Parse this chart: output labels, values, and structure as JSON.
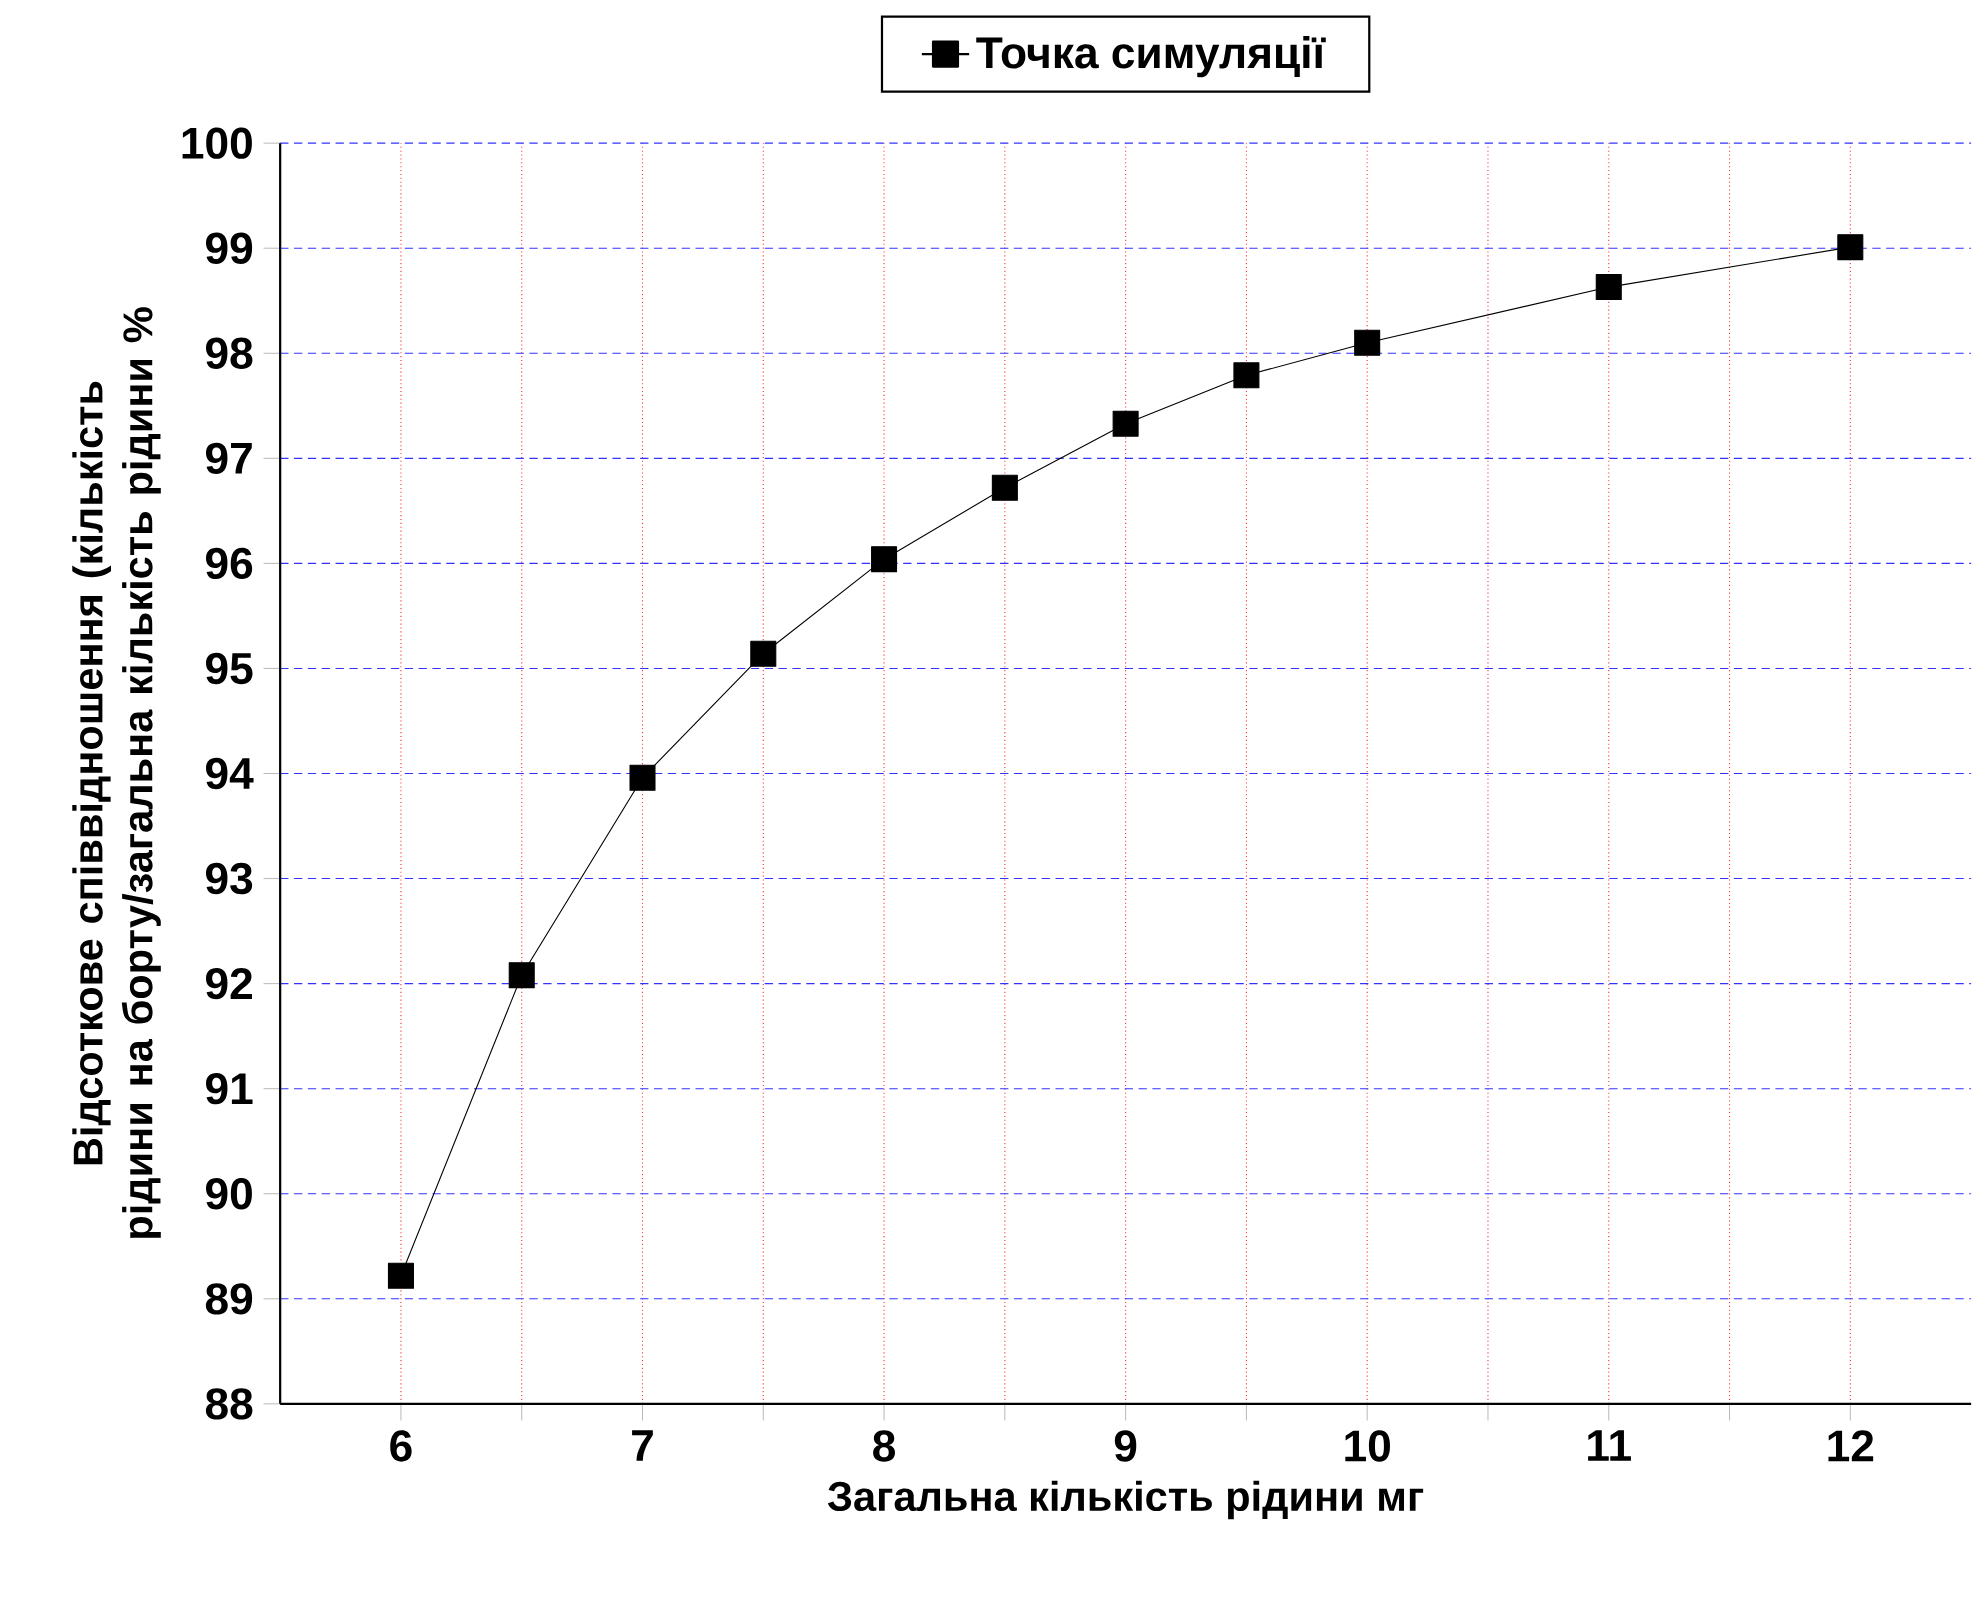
{
  "chart_data": {
    "type": "line",
    "xlabel": "Загальна кількість рідини мг",
    "ylabel": "Відсоткове співвідношення (кількість рідини на борту/загальна кількість рідини %",
    "x": [
      6,
      6.5,
      7,
      7.5,
      8,
      8.5,
      9,
      9.5,
      10,
      11,
      12
    ],
    "series": [
      {
        "name": "Точка симуляції",
        "color": "#000000",
        "values": [
          89.22,
          92.08,
          93.96,
          95.14,
          96.04,
          96.72,
          97.33,
          97.79,
          98.1,
          98.63,
          99.01
        ]
      }
    ],
    "xlim": [
      5.5,
      12.5
    ],
    "ylim": [
      88,
      100
    ],
    "xticks": [
      6,
      {
        "value": 6.5,
        "label": null
      },
      7,
      {
        "value": 7.5,
        "label": null
      },
      8,
      {
        "value": 8.5,
        "label": null
      },
      9,
      {
        "value": 9.5,
        "label": null
      },
      10,
      {
        "value": 10.5,
        "label": null
      },
      11,
      {
        "value": 11.5,
        "label": null
      },
      12
    ],
    "yticks": [
      88,
      89,
      90,
      91,
      92,
      93,
      94,
      95,
      96,
      97,
      98,
      99,
      100
    ],
    "grid": true,
    "legend": "top",
    "marker": "square",
    "line_style": "solid"
  }
}
